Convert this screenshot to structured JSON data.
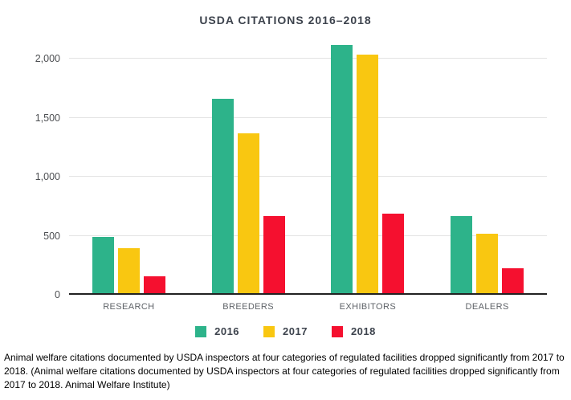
{
  "chart_data": {
    "type": "bar",
    "title": "USDA CITATIONS 2016–2018",
    "categories": [
      "RESEARCH",
      "BREEDERS",
      "EXHIBITORS",
      "DEALERS"
    ],
    "series": [
      {
        "name": "2016",
        "color": "#2db38a",
        "values": [
          490,
          1665,
          2120,
          670
        ]
      },
      {
        "name": "2017",
        "color": "#f9c711",
        "values": [
          395,
          1370,
          2040,
          515
        ]
      },
      {
        "name": "2018",
        "color": "#f5102f",
        "values": [
          155,
          670,
          685,
          225
        ]
      }
    ],
    "y_ticks": [
      0,
      500,
      1000,
      1500,
      2000
    ],
    "y_tick_labels": [
      "0",
      "500",
      "1,000",
      "1,500",
      "2,000"
    ],
    "ylim": [
      0,
      2180
    ],
    "grid": true,
    "legend_position": "bottom",
    "xlabel": "",
    "ylabel": ""
  },
  "caption": "Animal welfare citations documented by USDA inspectors at four categories of regulated facilities dropped significantly from 2017 to 2018. (Animal welfare citations documented by USDA inspectors at four categories of regulated facilities dropped significantly from 2017 to 2018. Animal Welfare Institute)"
}
